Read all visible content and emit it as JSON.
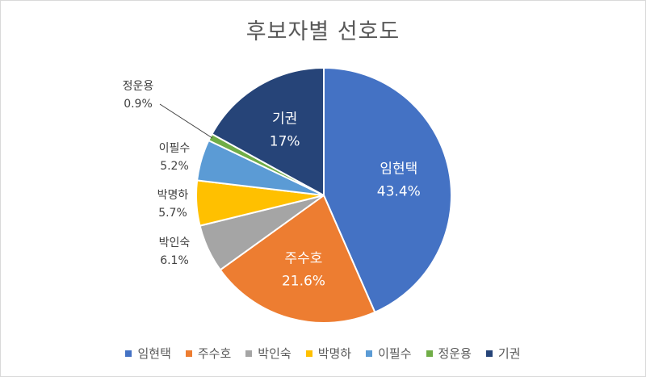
{
  "chart_data": {
    "type": "pie",
    "title": "후보자별 선호도",
    "legend_position": "bottom",
    "slices": [
      {
        "name": "임현택",
        "value": 43.4,
        "label": "43.4%",
        "color": "#4472c4",
        "label_placement": "inside"
      },
      {
        "name": "주수호",
        "value": 21.6,
        "label": "21.6%",
        "color": "#ed7d31",
        "label_placement": "inside"
      },
      {
        "name": "박인숙",
        "value": 6.1,
        "label": "6.1%",
        "color": "#a5a5a5",
        "label_placement": "outside"
      },
      {
        "name": "박명하",
        "value": 5.7,
        "label": "5.7%",
        "color": "#ffc000",
        "label_placement": "outside"
      },
      {
        "name": "이필수",
        "value": 5.2,
        "label": "5.2%",
        "color": "#5b9bd5",
        "label_placement": "outside"
      },
      {
        "name": "정운용",
        "value": 0.9,
        "label": "0.9%",
        "color": "#70ad47",
        "label_placement": "outside"
      },
      {
        "name": "기권",
        "value": 17,
        "label": "17%",
        "color": "#264478",
        "label_placement": "inside"
      }
    ]
  }
}
